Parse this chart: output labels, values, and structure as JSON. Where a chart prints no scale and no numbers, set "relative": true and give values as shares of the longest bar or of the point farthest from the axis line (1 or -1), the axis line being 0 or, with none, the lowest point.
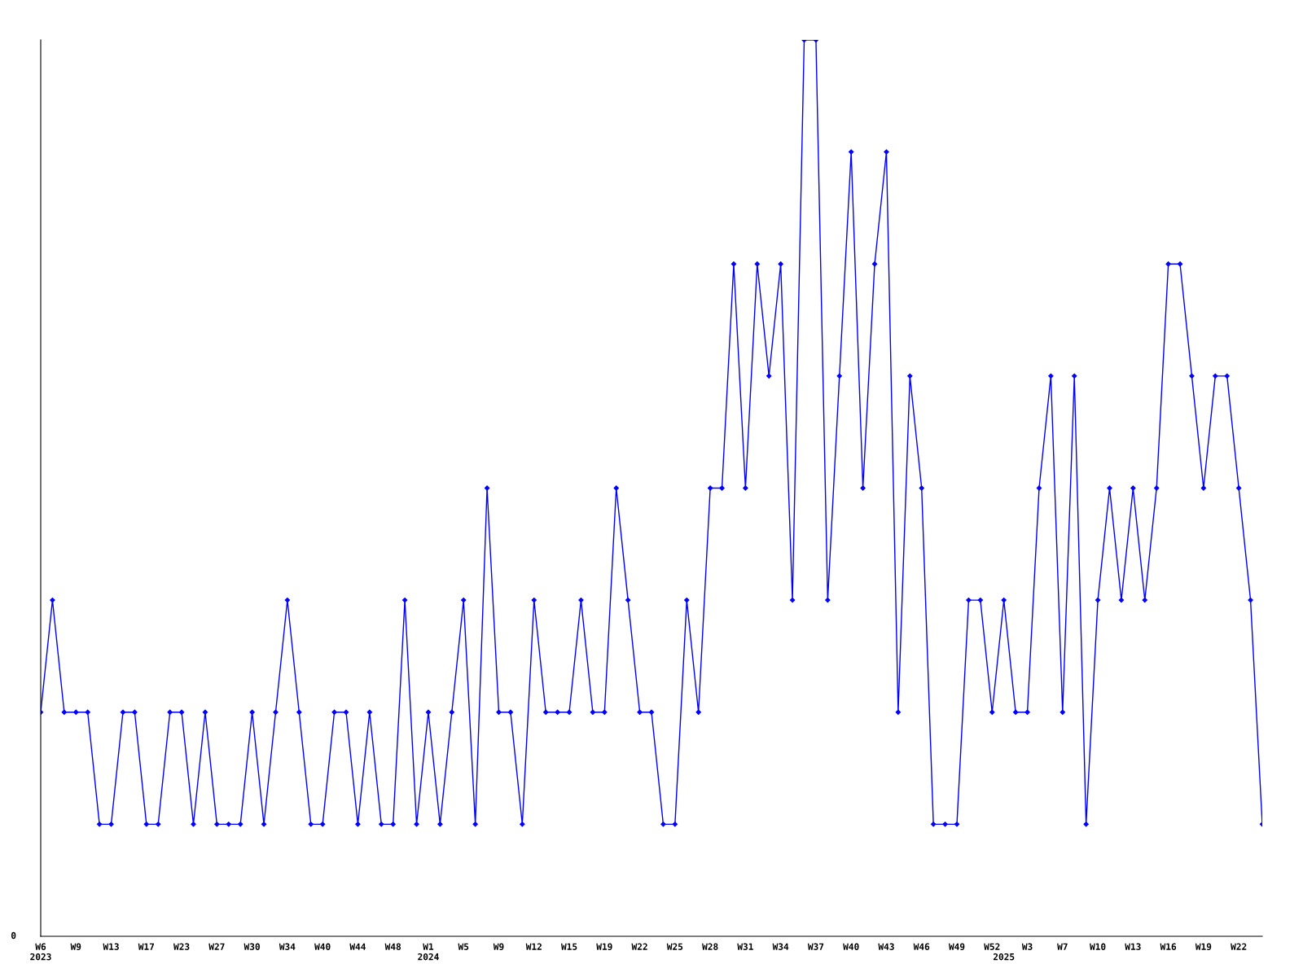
{
  "chart_data": {
    "type": "line",
    "relative": true,
    "marker": "diamond",
    "line_style": "solid",
    "grid": false,
    "legend": false,
    "annotations": [
      "0"
    ],
    "categories": [
      "W6\n2023",
      null,
      null,
      "W9",
      null,
      null,
      "W13",
      null,
      null,
      "W17",
      null,
      null,
      "W23",
      null,
      null,
      "W27",
      null,
      null,
      "W30",
      null,
      null,
      "W34",
      null,
      null,
      "W40",
      null,
      null,
      "W44",
      null,
      null,
      "W48",
      null,
      null,
      "W1\n2024",
      null,
      null,
      "W5",
      null,
      null,
      "W9",
      null,
      null,
      "W12",
      null,
      null,
      "W15",
      null,
      null,
      "W19",
      null,
      null,
      "W22",
      null,
      null,
      "W25",
      null,
      null,
      "W28",
      null,
      null,
      "W31",
      null,
      null,
      "W34",
      null,
      null,
      "W37",
      null,
      null,
      "W40",
      null,
      null,
      "W43",
      null,
      null,
      "W46",
      null,
      null,
      "W49",
      null,
      null,
      "W52",
      "\n2025",
      null,
      "W3",
      null,
      null,
      "W7",
      null,
      null,
      "W10",
      null,
      null,
      "W13",
      null,
      null,
      "W16",
      null,
      null,
      "W19",
      null,
      null,
      "W22",
      null,
      null
    ],
    "series": [
      {
        "color": "#0000ff",
        "values": [
          0.25,
          0.375,
          0.25,
          0.25,
          0.25,
          0.125,
          0.125,
          0.25,
          0.25,
          0.125,
          0.125,
          0.25,
          0.25,
          0.125,
          0.25,
          0.125,
          0.125,
          0.125,
          0.25,
          0.125,
          0.25,
          0.375,
          0.25,
          0.125,
          0.125,
          0.25,
          0.25,
          0.125,
          0.25,
          0.125,
          0.125,
          0.375,
          0.125,
          0.25,
          0.125,
          0.25,
          0.375,
          0.125,
          0.5,
          0.25,
          0.25,
          0.125,
          0.375,
          0.25,
          0.25,
          0.25,
          0.375,
          0.25,
          0.25,
          0.5,
          0.375,
          0.25,
          0.25,
          0.125,
          0.125,
          0.375,
          0.25,
          0.5,
          0.5,
          0.75,
          0.5,
          0.75,
          0.625,
          0.75,
          0.375,
          1,
          1,
          0.375,
          0.625,
          0.875,
          0.5,
          0.75,
          0.875,
          0.25,
          0.625,
          0.5,
          0.125,
          0.125,
          0.125,
          0.375,
          0.375,
          0.25,
          0.375,
          0.25,
          0.25,
          0.5,
          0.625,
          0.25,
          0.625,
          0.125,
          0.375,
          0.5,
          0.375,
          0.5,
          0.375,
          0.5,
          0.75,
          0.75,
          0.625,
          0.5,
          0.625,
          0.625,
          0.5,
          0.375,
          0.125
        ]
      }
    ]
  }
}
